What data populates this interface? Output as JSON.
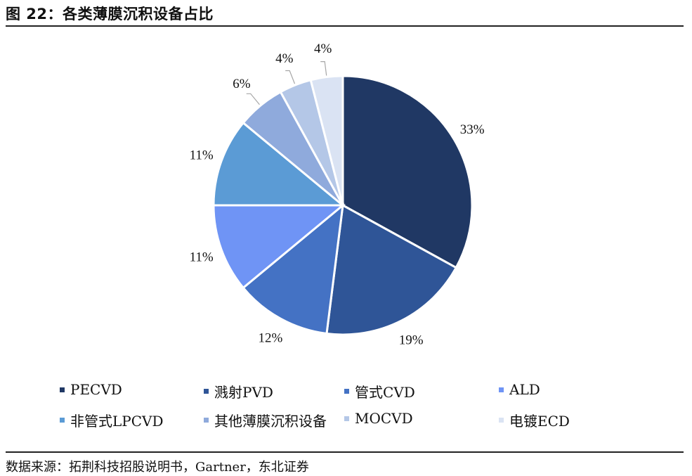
{
  "header": {
    "title": "图 22：各类薄膜沉积设备占比"
  },
  "chart_data": {
    "type": "pie",
    "title": "各类薄膜沉积设备占比",
    "categories": [
      "PECVD",
      "溅射PVD",
      "管式CVD",
      "ALD",
      "非管式LPCVD",
      "其他薄膜沉积设备",
      "MOCVD",
      "电镀ECD"
    ],
    "values": [
      33,
      19,
      12,
      11,
      11,
      6,
      4,
      4
    ],
    "labels": [
      "33%",
      "19%",
      "12%",
      "11%",
      "11%",
      "6%",
      "4%",
      "4%"
    ],
    "colors": [
      "#203864",
      "#2F5597",
      "#4472C4",
      "#6F94F5",
      "#5B9BD5",
      "#8FAADC",
      "#B4C7E7",
      "#DAE3F3"
    ],
    "start": "12 o'clock, clockwise",
    "legend_position": "bottom"
  },
  "footer": {
    "source": "数据来源：拓荆科技招股说明书，Gartner，东北证券"
  }
}
